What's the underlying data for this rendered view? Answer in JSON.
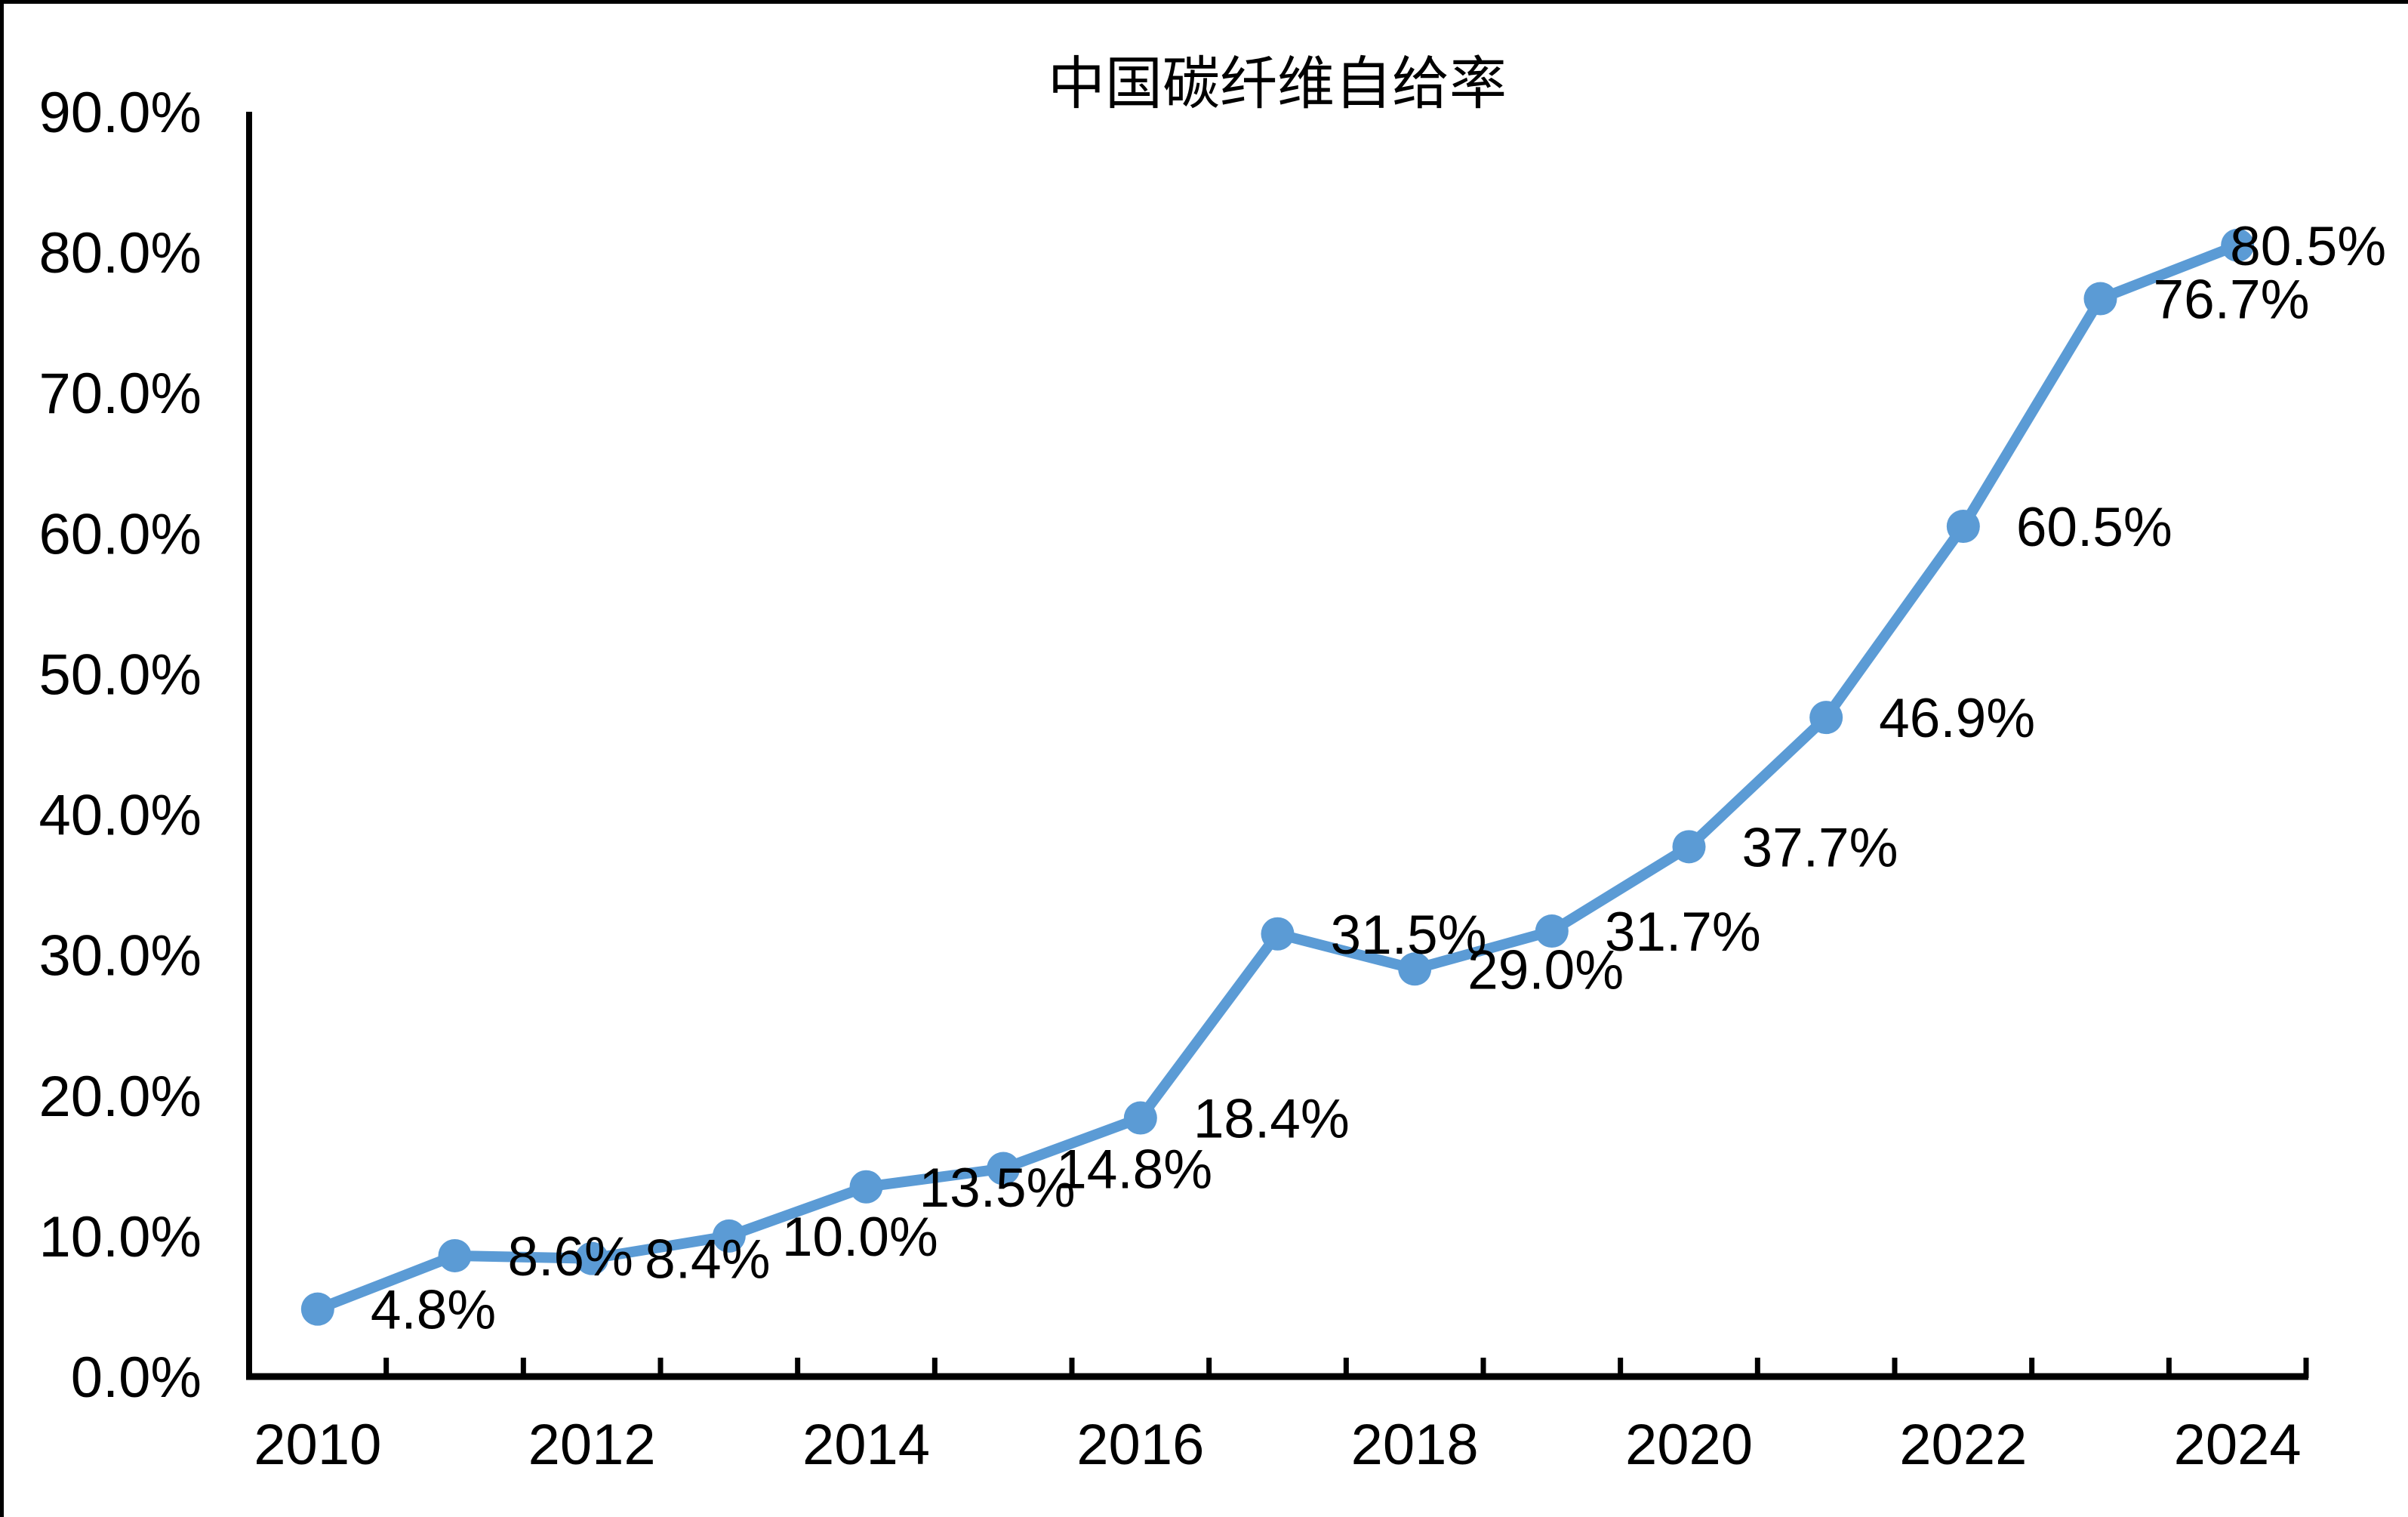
{
  "page": {
    "background_color": "#ffffff",
    "border_color": "#000000"
  },
  "chart_data": {
    "type": "line",
    "title": "中国碳纤维自给率",
    "categories": [
      "2010",
      "2011",
      "2012",
      "2013",
      "2014",
      "2015",
      "2016",
      "2017",
      "2018",
      "2019",
      "2020",
      "2021",
      "2022",
      "2023",
      "2024"
    ],
    "values": [
      4.8,
      8.6,
      8.4,
      10.0,
      13.5,
      14.8,
      18.4,
      31.5,
      29.0,
      31.7,
      37.7,
      46.9,
      60.5,
      76.7,
      80.5
    ],
    "data_labels": [
      "4.8%",
      "8.6%",
      "8.4%",
      "10.0%",
      "13.5%",
      "14.8%",
      "18.4%",
      "31.5%",
      "29.0%",
      "31.7%",
      "37.7%",
      "46.9%",
      "60.5%",
      "76.7%",
      "80.5%"
    ],
    "x_tick_labels": [
      "2010",
      "2012",
      "2014",
      "2016",
      "2018",
      "2020",
      "2022",
      "2024"
    ],
    "y_tick_labels": [
      "0.0%",
      "10.0%",
      "20.0%",
      "30.0%",
      "40.0%",
      "50.0%",
      "60.0%",
      "70.0%",
      "80.0%",
      "90.0%"
    ],
    "xlabel": "",
    "ylabel": "",
    "ylim": [
      0,
      90
    ],
    "y_step": 10,
    "grid": false,
    "legend": false,
    "line_color": "#5B9BD5",
    "marker": "circle",
    "axis_color": "#000000",
    "label_color": "#000000"
  }
}
